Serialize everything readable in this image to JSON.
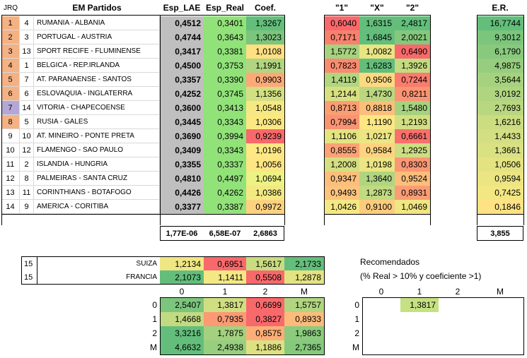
{
  "headers": {
    "jrq": "JRQ",
    "partidos": "EM Partidos",
    "esp_lae": "Esp_LAE",
    "esp_real": "Esp_Real",
    "coef": "Coef.",
    "h1": "\"1\"",
    "hx": "\"X\"",
    "h2": "\"2\"",
    "er": "E.R."
  },
  "rows": [
    {
      "jrq": "1",
      "n": "4",
      "match": "RUMANIA - ALBANIA",
      "lae": "0,4512",
      "real": "0,3401",
      "coef": "1,3267",
      "p1": "0,6040",
      "px": "1,6315",
      "p2": "2,4817",
      "er": "16,7744"
    },
    {
      "jrq": "2",
      "n": "3",
      "match": "PORTUGAL - AUSTRIA",
      "lae": "0,4744",
      "real": "0,3643",
      "coef": "1,3023",
      "p1": "0,7171",
      "px": "1,6845",
      "p2": "2,0021",
      "er": "9,3012"
    },
    {
      "jrq": "3",
      "n": "13",
      "match": "SPORT RECIFE - FLUMINENSE",
      "lae": "0,3417",
      "real": "0,3381",
      "coef": "1,0108",
      "p1": "1,5772",
      "px": "1,0082",
      "p2": "0,6490",
      "er": "6,1790"
    },
    {
      "jrq": "4",
      "n": "1",
      "match": "BELGICA - REP.IRLANDA",
      "lae": "0,4500",
      "real": "0,3753",
      "coef": "1,1991",
      "p1": "0,7823",
      "px": "1,6283",
      "p2": "1,3926",
      "er": "4,9875"
    },
    {
      "jrq": "5",
      "n": "7",
      "match": "AT. PARANAENSE - SANTOS",
      "lae": "0,3357",
      "real": "0,3390",
      "coef": "0,9903",
      "p1": "1,4119",
      "px": "0,9506",
      "p2": "0,7244",
      "er": "3,5644"
    },
    {
      "jrq": "6",
      "n": "6",
      "match": "ESLOVAQUIA - INGLATERRA",
      "lae": "0,4252",
      "real": "0,3745",
      "coef": "1,1356",
      "p1": "1,2144",
      "px": "1,4730",
      "p2": "0,8211",
      "er": "3,0192"
    },
    {
      "jrq": "7",
      "n": "14",
      "match": "VITORIA - CHAPECOENSE",
      "lae": "0,3600",
      "real": "0,3413",
      "coef": "1,0548",
      "p1": "0,8713",
      "px": "0,8818",
      "p2": "1,5480",
      "er": "2,7693"
    },
    {
      "jrq": "8",
      "n": "5",
      "match": "RUSIA - GALES",
      "lae": "0,3445",
      "real": "0,3343",
      "coef": "1,0306",
      "p1": "0,7994",
      "px": "1,1190",
      "p2": "1,2193",
      "er": "1,6216"
    },
    {
      "jrq": "9",
      "n": "10",
      "match": "AT. MINEIRO - PONTE PRETA",
      "lae": "0,3690",
      "real": "0,3994",
      "coef": "0,9239",
      "p1": "1,1106",
      "px": "1,0217",
      "p2": "0,6661",
      "er": "1,4433"
    },
    {
      "jrq": "10",
      "n": "12",
      "match": "FLAMENGO - SAO PAULO",
      "lae": "0,3409",
      "real": "0,3343",
      "coef": "1,0196",
      "p1": "0,8555",
      "px": "0,9584",
      "p2": "1,2925",
      "er": "1,3661"
    },
    {
      "jrq": "11",
      "n": "2",
      "match": "ISLANDIA - HUNGRIA",
      "lae": "0,3355",
      "real": "0,3337",
      "coef": "1,0056",
      "p1": "1,2008",
      "px": "1,0198",
      "p2": "0,8303",
      "er": "1,0506"
    },
    {
      "jrq": "12",
      "n": "8",
      "match": "PALMEIRAS - SANTA CRUZ",
      "lae": "0,4810",
      "real": "0,4497",
      "coef": "1,0694",
      "p1": "0,9347",
      "px": "1,3640",
      "p2": "0,9524",
      "er": "0,9594"
    },
    {
      "jrq": "13",
      "n": "11",
      "match": "CORINTHIANS - BOTAFOGO",
      "lae": "0,4426",
      "real": "0,4262",
      "coef": "1,0386",
      "p1": "0,9493",
      "px": "1,2873",
      "p2": "0,8931",
      "er": "0,7425"
    },
    {
      "jrq": "14",
      "n": "9",
      "match": "AMERICA - CORITIBA",
      "lae": "0,3377",
      "real": "0,3387",
      "coef": "0,9972",
      "p1": "1,0426",
      "px": "0,9100",
      "p2": "1,0469",
      "er": "0,1846"
    }
  ],
  "jrq_colors": [
    "#f4b183",
    "#f4b183",
    "#f4b183",
    "#f4b183",
    "#f4b183",
    "#f4b183",
    "#b4a7d6",
    "#f4b183",
    "#ffffff",
    "#ffffff",
    "#ffffff",
    "#ffffff",
    "#ffffff",
    "#ffffff"
  ],
  "coef_colors": [
    "#63be7b",
    "#7cc57d",
    "#ffe083",
    "#b1d580",
    "#fbaa77",
    "#d2df82",
    "#f6e984",
    "#fce883",
    "#f8696b",
    "#fee883",
    "#fde683",
    "#ecf283",
    "#f3e983",
    "#fdd27f"
  ],
  "p1_colors": [
    "#f8696b",
    "#f8816e",
    "#a6d27f",
    "#f98c70",
    "#b2d580",
    "#d7e081",
    "#fa9e74",
    "#f99372",
    "#e3e382",
    "#fba276",
    "#d5df81",
    "#fcbf7b",
    "#fdc47d",
    "#f5e884"
  ],
  "px_colors": [
    "#63be7b",
    "#63be7b",
    "#e9e583",
    "#63be7b",
    "#fdd980",
    "#bad780",
    "#fcbe7b",
    "#fee783",
    "#ede583",
    "#fdd37f",
    "#ece583",
    "#b0d580",
    "#c2da81",
    "#fccc7d"
  ],
  "p2_colors": [
    "#63be7b",
    "#85c87d",
    "#f8696b",
    "#c5db81",
    "#f97c6e",
    "#fa9473",
    "#a6d27f",
    "#d2df82",
    "#f8706c",
    "#cddd82",
    "#fa9774",
    "#fdbe7b",
    "#fa9d75",
    "#f0e683"
  ],
  "er_colors": [
    "#63be7b",
    "#7cc57d",
    "#89c97e",
    "#97cd7e",
    "#a6d27f",
    "#b0d580",
    "#b8d780",
    "#cbdc81",
    "#d3df82",
    "#d9e182",
    "#e3e382",
    "#ece583",
    "#f3e783",
    "#fee283"
  ],
  "totals": {
    "lae": "1,77E-06",
    "real": "6,58E-07",
    "coef": "2,6863",
    "er": "3,855"
  },
  "bottom_left": {
    "rows": [
      {
        "num": "15",
        "team": "SUIZA",
        "v": [
          "1,2134",
          "0,6951",
          "1,5617",
          "2,1733"
        ],
        "colors": [
          "#f0e683",
          "#f8696b",
          "#c9dc81",
          "#63be7b"
        ]
      },
      {
        "num": "15",
        "team": "FRANCIA",
        "v": [
          "2,1073",
          "1,1411",
          "0,5508",
          "1,2878"
        ],
        "colors": [
          "#63be7b",
          "#f4e884",
          "#f8696b",
          "#e3e382"
        ]
      }
    ],
    "col_headers": [
      "0",
      "1",
      "2",
      "M"
    ],
    "matrix_rows": [
      {
        "label": "0",
        "v": [
          "2,5407",
          "1,3817",
          "0,6699",
          "1,5757"
        ],
        "colors": [
          "#7cc57d",
          "#d0de82",
          "#f8696b",
          "#b1d580"
        ]
      },
      {
        "label": "1",
        "v": [
          "1,4668",
          "0,7935",
          "0,3827",
          "0,8933"
        ],
        "colors": [
          "#c2da81",
          "#fb9a74",
          "#f8696b",
          "#fdbb7b"
        ]
      },
      {
        "label": "2",
        "v": [
          "3,3216",
          "1,7875",
          "0,8575",
          "1,9863"
        ],
        "colors": [
          "#63be7b",
          "#a3d17f",
          "#fdae78",
          "#8ccb7e"
        ]
      },
      {
        "label": "M",
        "v": [
          "4,6632",
          "2,4938",
          "1,1886",
          "2,7365"
        ],
        "colors": [
          "#63be7b",
          "#98ce7f",
          "#dde182",
          "#85c97d"
        ]
      }
    ]
  },
  "recomendados": {
    "title": "Recomendados",
    "subtitle": "(% Real > 10% y coeficiente >1)",
    "col_headers": [
      "0",
      "1",
      "2",
      "M"
    ],
    "row_labels": [
      "0",
      "1",
      "2",
      "M"
    ],
    "value": "1,3817",
    "value_color": "#c6e183"
  },
  "colors": {
    "lae_bg": "#bfbfbf",
    "real_bg": "#92e27a",
    "page_bg": "#ffffff"
  }
}
